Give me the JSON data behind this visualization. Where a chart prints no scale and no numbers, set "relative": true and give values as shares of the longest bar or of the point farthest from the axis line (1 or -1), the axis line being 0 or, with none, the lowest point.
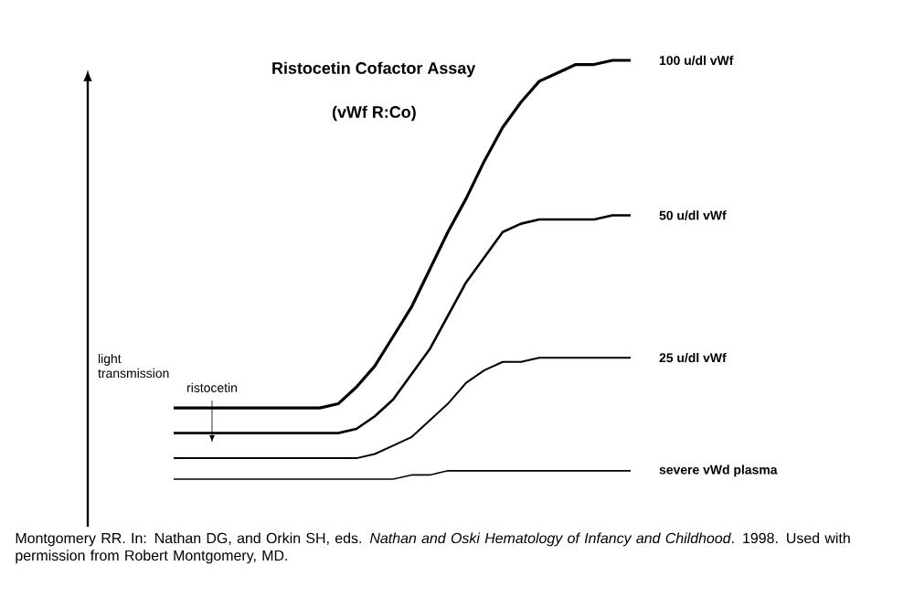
{
  "chart_data": {
    "type": "line",
    "relative": true,
    "title": "Ristocetin Cofactor Assay",
    "subtitle": "(vWf R:Co)",
    "ylabel": "light transmission",
    "marker": "none",
    "categories": [
      null,
      null,
      null,
      null,
      null,
      null,
      null,
      null,
      null,
      null,
      null,
      null,
      null,
      null,
      null,
      null,
      null,
      null,
      null,
      null,
      null,
      null,
      null,
      null,
      null,
      null
    ],
    "series": [
      {
        "name": "100 u/dl vWf",
        "color": "#000000",
        "values": [
          0.17,
          0.17,
          0.17,
          0.17,
          0.17,
          0.17,
          0.17,
          0.17,
          0.17,
          0.18,
          0.22,
          0.27,
          0.34,
          0.41,
          0.5,
          0.59,
          0.67,
          0.76,
          0.84,
          0.9,
          0.95,
          0.97,
          0.99,
          0.99,
          1.0,
          1.0
        ]
      },
      {
        "name": "50 u/dl vWf",
        "color": "#000000",
        "values": [
          0.11,
          0.11,
          0.11,
          0.11,
          0.11,
          0.11,
          0.11,
          0.11,
          0.11,
          0.11,
          0.12,
          0.15,
          0.19,
          0.25,
          0.31,
          0.39,
          0.47,
          0.53,
          0.59,
          0.61,
          0.62,
          0.62,
          0.62,
          0.62,
          0.63,
          0.63
        ]
      },
      {
        "name": "25 u/dl vWf",
        "color": "#000000",
        "values": [
          0.05,
          0.05,
          0.05,
          0.05,
          0.05,
          0.05,
          0.05,
          0.05,
          0.05,
          0.05,
          0.05,
          0.06,
          0.08,
          0.1,
          0.14,
          0.18,
          0.23,
          0.26,
          0.28,
          0.28,
          0.29,
          0.29,
          0.29,
          0.29,
          0.29,
          0.29
        ]
      },
      {
        "name": "severe vWd plasma",
        "color": "#000000",
        "values": [
          0,
          0,
          0,
          0,
          0,
          0,
          0,
          0,
          0,
          0,
          0,
          0,
          0,
          0.01,
          0.01,
          0.02,
          0.02,
          0.02,
          0.02,
          0.02,
          0.02,
          0.02,
          0.02,
          0.02,
          0.02,
          0.02
        ]
      }
    ],
    "annotations": [
      "ristocetin",
      "Montgomery RR. In: Nathan DG, and Orkin SH, eds. *Nathan and Oski Hematology of Infancy and Childhood*. 1998. Used with permission from Robert Montgomery, MD."
    ]
  }
}
